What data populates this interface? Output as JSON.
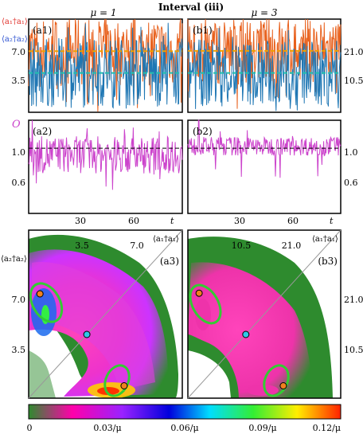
{
  "header": {
    "title": "Interval (iii)",
    "mu_left": "μ = 1",
    "mu_right": "μ = 3"
  },
  "colors": {
    "series1": "#e8601c",
    "series2": "#1f77b4",
    "mean1": "#f0a000",
    "mean2": "#20c0b0",
    "order": "#cc44cc",
    "ref": "#000000",
    "diag": "#999999",
    "contour": "#33cc33",
    "point_orange": "#f08020",
    "point_cyan": "#30c8e8"
  },
  "panels": {
    "a1": {
      "label": "(a1)",
      "ylabel1": "⟨a₁†a₁⟩",
      "ylabel2": "⟨a₂†a₂⟩",
      "yticks": [
        "7.0",
        "3.5"
      ]
    },
    "b1": {
      "label": "(b1)",
      "yticks": [
        "21.0",
        "10.5"
      ]
    },
    "a2": {
      "label": "(a2)",
      "ylabel": "O",
      "yticks": [
        "1.0",
        "0.6"
      ],
      "xticks": [
        "30",
        "60"
      ],
      "xlabel": "t"
    },
    "b2": {
      "label": "(b2)",
      "yticks": [
        "1.0",
        "0.6"
      ],
      "xticks": [
        "30",
        "60"
      ],
      "xlabel": "t"
    },
    "a3": {
      "label": "(a3)",
      "xticks": [
        "3.5",
        "7.0"
      ],
      "xlabel": "⟨a₁†a₁⟩",
      "yticks": [
        "7.0",
        "3.5"
      ],
      "ylabel": "⟨a₂†a₂⟩"
    },
    "b3": {
      "label": "(b3)",
      "xticks": [
        "10.5",
        "21.0"
      ],
      "xlabel": "⟨a₁†a₁⟩",
      "yticks": [
        "21.0",
        "10.5"
      ]
    }
  },
  "colorbar": {
    "ticks": [
      "0",
      "0.03/μ",
      "0.06/μ",
      "0.09/μ",
      "0.12/μ"
    ],
    "stops": [
      "#2e8b2e",
      "#ff00aa",
      "#9a22ff",
      "#0000dd",
      "#00ddff",
      "#33ee33",
      "#ffee00",
      "#ff2200"
    ]
  },
  "chart_data": [
    {
      "type": "line",
      "panel": "a1",
      "x_range": [
        0,
        85
      ],
      "ylim": [
        0,
        9
      ],
      "series": [
        {
          "name": "⟨a₁†a₁⟩",
          "mean": 5.9,
          "min": 0,
          "max": 9
        },
        {
          "name": "⟨a₂†a₂⟩",
          "mean": 3.8,
          "min": 0,
          "max": 9
        }
      ],
      "reference_lines": [
        5.9,
        3.8
      ]
    },
    {
      "type": "line",
      "panel": "b1",
      "x_range": [
        0,
        85
      ],
      "ylim": [
        0,
        27
      ],
      "series": [
        {
          "name": "⟨a₁†a₁⟩",
          "mean": 17.8,
          "min": 0,
          "max": 26
        },
        {
          "name": "⟨a₂†a₂⟩",
          "mean": 11.4,
          "min": 0,
          "max": 26
        }
      ],
      "reference_lines": [
        17.8,
        11.4
      ]
    },
    {
      "type": "line",
      "panel": "a2",
      "x_range": [
        0,
        85
      ],
      "xticks": [
        30,
        60
      ],
      "ylim": [
        0.3,
        1.3
      ],
      "series": [
        {
          "name": "O",
          "mean": 0.93,
          "min": 0.35,
          "max": 1.25
        }
      ],
      "reference_lines": [
        1.0
      ]
    },
    {
      "type": "line",
      "panel": "b2",
      "x_range": [
        0,
        85
      ],
      "xticks": [
        30,
        60
      ],
      "ylim": [
        0.3,
        1.3
      ],
      "series": [
        {
          "name": "O",
          "mean": 1.02,
          "min": 0.85,
          "max": 1.15
        }
      ],
      "reference_lines": [
        1.0
      ]
    },
    {
      "type": "heatmap",
      "panel": "a3",
      "xlim": [
        0,
        9.5
      ],
      "ylim": [
        0,
        9.5
      ],
      "xticks": [
        3.5,
        7.0
      ],
      "yticks": [
        3.5,
        7.0
      ],
      "points": [
        {
          "x": 0.7,
          "y": 5.9,
          "color": "orange"
        },
        {
          "x": 3.6,
          "y": 3.6,
          "color": "cyan"
        },
        {
          "x": 5.9,
          "y": 0.7,
          "color": "orange"
        }
      ],
      "colorbar_range": [
        0,
        0.12
      ]
    },
    {
      "type": "heatmap",
      "panel": "b3",
      "xlim": [
        0,
        28.5
      ],
      "ylim": [
        0,
        28.5
      ],
      "xticks": [
        10.5,
        21.0
      ],
      "yticks": [
        10.5,
        21.0
      ],
      "points": [
        {
          "x": 2.1,
          "y": 17.8,
          "color": "orange"
        },
        {
          "x": 10.8,
          "y": 10.8,
          "color": "cyan"
        },
        {
          "x": 17.8,
          "y": 2.1,
          "color": "orange"
        }
      ],
      "colorbar_range": [
        0,
        0.12
      ]
    }
  ]
}
